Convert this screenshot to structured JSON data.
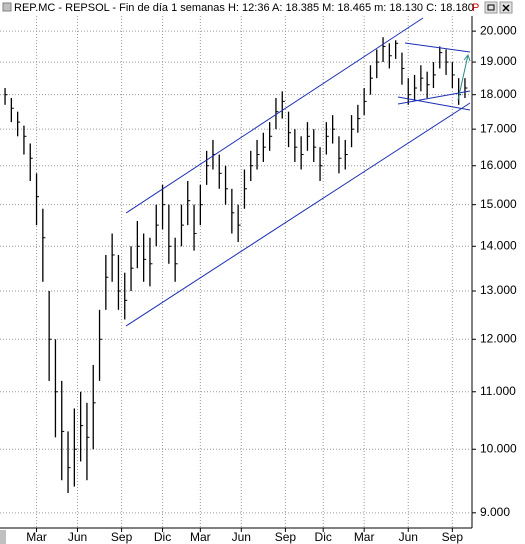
{
  "chart_data": {
    "type": "hlc",
    "title": "REP.MC - REPSOL - Fin de día 1 semanas  H: 12:36  A: 18.385  M: 18.465  m: 18.130  C: 18.180",
    "flag": "P",
    "color": "#000000",
    "log_scale": true,
    "grid": true,
    "x": [
      0,
      2,
      4,
      6,
      8,
      10,
      12,
      14,
      16,
      18,
      20,
      22,
      24,
      26,
      28,
      30,
      32,
      34,
      36,
      38,
      40,
      42,
      44,
      46,
      48,
      50,
      52,
      54,
      56,
      58,
      60,
      62,
      64,
      66,
      68,
      70,
      72,
      74,
      76,
      78,
      80,
      82,
      84,
      86,
      88,
      90,
      92,
      94,
      96,
      98,
      100,
      102,
      104,
      106,
      108,
      110,
      112,
      114,
      116,
      118,
      120,
      122,
      124,
      126,
      128,
      130,
      132,
      134,
      136,
      138,
      140,
      142,
      144,
      146
    ],
    "high": [
      18.2,
      17.9,
      17.5,
      17.1,
      16.6,
      15.8,
      14.9,
      13.0,
      12.0,
      11.2,
      10.3,
      10.7,
      11.0,
      10.8,
      11.5,
      12.6,
      13.8,
      14.3,
      13.8,
      13.4,
      14.0,
      14.6,
      14.3,
      14.2,
      15.0,
      15.5,
      15.0,
      14.2,
      15.0,
      15.6,
      15.0,
      15.5,
      16.4,
      16.7,
      16.3,
      16.0,
      15.4,
      15.0,
      15.9,
      16.4,
      16.7,
      16.9,
      17.2,
      17.9,
      18.1,
      17.5,
      17.0,
      16.8,
      17.2,
      17.0,
      16.5,
      17.2,
      17.4,
      16.8,
      16.7,
      17.4,
      17.7,
      18.2,
      18.9,
      19.4,
      19.8,
      19.6,
      19.7,
      19.3,
      18.5,
      18.6,
      18.9,
      18.7,
      19.0,
      19.5,
      19.4,
      19.0,
      18.5,
      18.5
    ],
    "low": [
      17.7,
      17.2,
      16.8,
      16.3,
      15.6,
      14.5,
      13.2,
      11.2,
      10.2,
      9.5,
      9.3,
      9.4,
      9.8,
      9.5,
      10.0,
      11.2,
      12.6,
      13.2,
      12.6,
      12.4,
      13.0,
      13.5,
      13.2,
      13.1,
      14.0,
      14.4,
      13.6,
      13.2,
      14.0,
      14.5,
      13.9,
      14.5,
      15.5,
      15.9,
      15.4,
      15.0,
      14.3,
      14.1,
      14.9,
      15.6,
      15.9,
      16.1,
      16.4,
      17.0,
      17.3,
      16.5,
      16.1,
      15.9,
      16.4,
      16.1,
      15.6,
      16.3,
      16.6,
      15.8,
      15.9,
      16.5,
      16.9,
      17.4,
      18.0,
      18.5,
      19.0,
      18.8,
      19.1,
      18.3,
      17.7,
      17.8,
      18.1,
      17.9,
      18.2,
      18.8,
      18.6,
      18.2,
      17.7,
      17.9
    ],
    "close": [
      18.0,
      17.6,
      17.2,
      16.8,
      16.2,
      15.2,
      14.2,
      12.0,
      11.0,
      10.3,
      9.7,
      10.0,
      10.4,
      10.2,
      10.8,
      12.0,
      13.3,
      13.8,
      13.0,
      12.8,
      13.5,
      14.0,
      13.7,
      13.6,
      14.5,
      15.0,
      14.0,
      13.6,
      14.5,
      15.1,
      14.3,
      15.0,
      16.0,
      16.3,
      15.8,
      15.4,
      14.8,
      14.5,
      15.4,
      16.0,
      16.3,
      16.5,
      16.8,
      17.5,
      17.8,
      16.9,
      16.5,
      16.3,
      16.8,
      16.5,
      16.0,
      16.8,
      17.0,
      16.2,
      16.3,
      17.0,
      17.3,
      17.8,
      18.5,
      19.0,
      19.5,
      19.2,
      19.6,
      18.8,
      18.0,
      18.2,
      18.5,
      18.3,
      18.6,
      19.3,
      19.0,
      18.6,
      18.0,
      18.2
    ],
    "xlim": [
      -1.6,
      147.6
    ],
    "xticks": [
      {
        "value": 10,
        "label": "Mar"
      },
      {
        "value": 23,
        "label": "Jun"
      },
      {
        "value": 37,
        "label": "Sep"
      },
      {
        "value": 50,
        "label": "Dic"
      },
      {
        "value": 62,
        "label": "Mar"
      },
      {
        "value": 75,
        "label": "Jun"
      },
      {
        "value": 89,
        "label": "Sep"
      },
      {
        "value": 101,
        "label": "Dic"
      },
      {
        "value": 114,
        "label": "Mar"
      },
      {
        "value": 128,
        "label": "Jun"
      },
      {
        "value": 142,
        "label": "Sep"
      }
    ],
    "ylim": [
      8.82,
      20.44
    ],
    "yticks": [
      {
        "value": 20,
        "label": "20.000"
      },
      {
        "value": 19,
        "label": "19.000"
      },
      {
        "value": 18,
        "label": "18.000"
      },
      {
        "value": 17,
        "label": "17.000"
      },
      {
        "value": 16,
        "label": "16.000"
      },
      {
        "value": 15,
        "label": "15.000"
      },
      {
        "value": 14,
        "label": "14.000"
      },
      {
        "value": 13,
        "label": "13.000"
      },
      {
        "value": 12,
        "label": "12.000"
      },
      {
        "value": 11,
        "label": "11.000"
      },
      {
        "value": 10,
        "label": "10.000"
      },
      {
        "value": 9,
        "label": "9.000"
      }
    ]
  }
}
